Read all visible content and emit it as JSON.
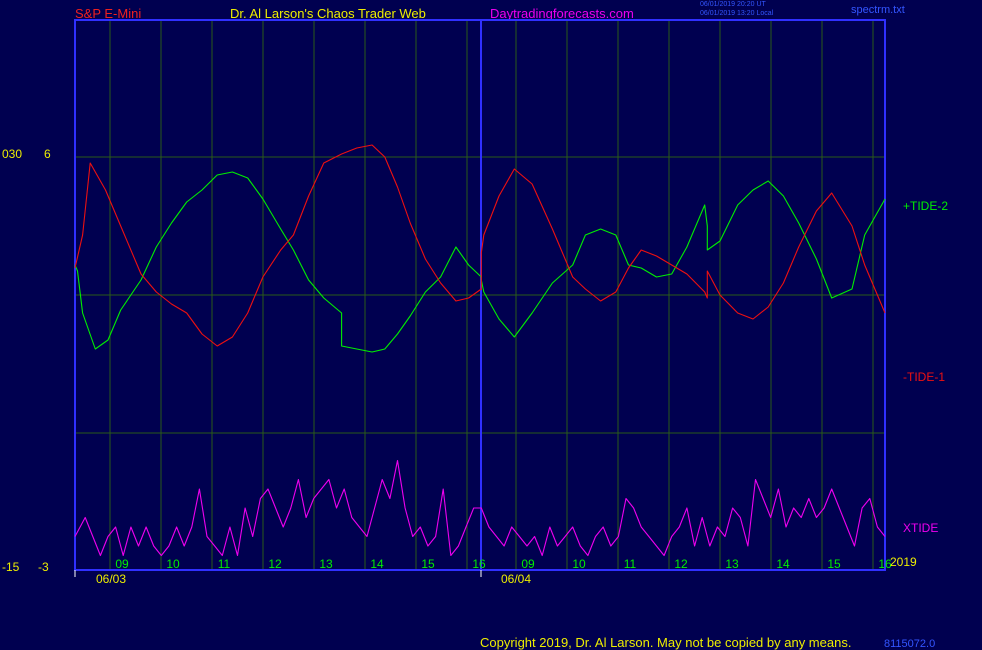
{
  "header": {
    "symbol": "S&P E-Mini",
    "site_title": "Dr. Al Larson's Chaos Trader Web",
    "site_link": "Daytradingforecasts.com",
    "utc_stamp": "06/01/2019 20:20 UT",
    "local_stamp": "06/01/2019 13:20 Local",
    "file_name": "spectrm.txt"
  },
  "footer": {
    "copyright": "Copyright 2019, Dr. Al Larson. May not be copied by any means.",
    "counter": "8115072.0"
  },
  "colors": {
    "background": "#000050",
    "frame": "#3030ff",
    "grid": "#2a5a18",
    "tide2": "#00ee00",
    "tide1": "#ee1010",
    "xtide": "#ee00ee",
    "text_yellow": "#eeee00",
    "text_red": "#ee2020",
    "text_magenta": "#ee00ee",
    "text_blue": "#3355ff"
  },
  "chart_data": {
    "type": "line",
    "title": "",
    "y_axis_labels": [
      {
        "left": "030",
        "right": "6",
        "value": 6
      },
      {
        "left": "-15",
        "right": "-3",
        "value": -3
      }
    ],
    "ylim": [
      -3,
      6
    ],
    "x_tick_labels_day1": [
      "09",
      "10",
      "11",
      "12",
      "13",
      "14",
      "15",
      "16"
    ],
    "x_tick_labels_day2": [
      "09",
      "10",
      "11",
      "12",
      "13",
      "14",
      "15",
      "16"
    ],
    "date_labels": [
      "06/03",
      "06/04"
    ],
    "year_label": "2019",
    "grid": true,
    "series": [
      {
        "name": "+TIDE-2",
        "color": "#00ee00",
        "x": [
          0,
          0.05,
          0.15,
          0.4,
          0.65,
          0.9,
          1.3,
          1.6,
          1.9,
          2.2,
          2.5,
          2.8,
          3.1,
          3.4,
          3.7,
          4.05,
          4.3,
          4.6,
          4.9,
          5.25,
          5.25,
          5.55,
          5.85,
          6.1,
          6.35,
          6.6,
          6.9,
          7.2,
          7.5,
          7.75,
          8.0,
          8.0,
          8.05,
          8.35,
          8.65,
          9.0,
          9.4,
          9.8,
          10.05,
          10.35,
          10.65,
          10.9,
          11.15,
          11.45,
          11.75,
          12.05,
          12.4,
          12.45,
          12.45,
          12.7,
          13.05,
          13.35,
          13.65,
          13.95,
          14.25,
          14.6,
          14.9,
          15.3,
          15.55,
          15.95
        ],
        "y": [
          0.9,
          0.5,
          -0.5,
          -1.3,
          -0.9,
          -0.1,
          0.9,
          2.1,
          3.2,
          4.2,
          3.9,
          3.1,
          2.1,
          1.4,
          2.7,
          3.4,
          2.8,
          2.7,
          2.2,
          1.6,
          -1.2,
          -1.4,
          -1.1,
          -1.2,
          -0.3,
          0.4,
          1.4,
          1.6,
          2.5,
          1.8,
          1.3,
          0.9,
          0.3,
          -1.1,
          -1.6,
          -0.5,
          0.6,
          0.9,
          2.0,
          2.5,
          2.7,
          1.8,
          2.0,
          1.4,
          1.3,
          2.9,
          4.5,
          3.8,
          3.0,
          3.3,
          4.1,
          4.4,
          3.8,
          2.9,
          1.9,
          0.8,
          -0.8,
          0.7,
          3.0,
          4.8
        ],
        "ysrc": [
          1.0,
          0.8,
          -0.6,
          -1.8,
          -1.5,
          -0.5,
          0.5,
          1.6,
          2.4,
          3.1,
          3.5,
          4.0,
          4.1,
          3.9,
          3.2,
          2.2,
          1.5,
          0.5,
          -0.1,
          -0.6,
          -1.7,
          -1.8,
          -1.9,
          -1.8,
          -1.3,
          -0.7,
          0.1,
          0.6,
          1.6,
          1.0,
          0.6,
          0.5,
          0.1,
          -0.8,
          -1.4,
          -0.6,
          0.4,
          1.0,
          2.0,
          2.2,
          2.0,
          1.0,
          0.9,
          0.6,
          0.7,
          1.6,
          3.0,
          2.3,
          1.5,
          1.8,
          3.0,
          3.5,
          3.8,
          3.3,
          2.4,
          1.2,
          -0.1,
          0.2,
          2.0,
          3.2
        ]
      },
      {
        "name": "-TIDE-1",
        "color": "#ee1010",
        "x": [
          0,
          0.15,
          0.3,
          0.6,
          0.9,
          1.3,
          1.6,
          1.9,
          2.2,
          2.5,
          2.8,
          3.1,
          3.4,
          3.7,
          4.05,
          4.3,
          4.6,
          4.9,
          5.25,
          5.25,
          5.55,
          5.85,
          6.1,
          6.35,
          6.6,
          6.9,
          7.2,
          7.5,
          7.75,
          8.0,
          8.0,
          8.05,
          8.35,
          8.65,
          9.0,
          9.4,
          9.8,
          10.05,
          10.35,
          10.65,
          10.9,
          11.15,
          11.45,
          11.75,
          12.05,
          12.4,
          12.45,
          12.45,
          12.7,
          13.05,
          13.35,
          13.65,
          13.95,
          14.25,
          14.6,
          14.9,
          15.3,
          15.55,
          15.95
        ],
        "y": [
          1.1,
          2.5,
          4.6,
          3.9,
          2.9,
          1.8,
          0.7,
          0.2,
          -0.3,
          -1.2,
          -1.5,
          -0.6,
          0.9,
          1.8,
          2.0,
          2.6,
          3.8,
          4.7,
          4.8,
          4.8,
          5.0,
          5.1,
          4.6,
          3.5,
          2.2,
          1.0,
          0.3,
          -0.3,
          -0.2,
          0.2,
          1.5,
          2.0,
          3.3,
          4.2,
          3.6,
          2.0,
          0.6,
          0.1,
          -0.3,
          0.0,
          0.9,
          1.5,
          1.3,
          1.0,
          0.6,
          0.0,
          -0.2,
          0.8,
          -0.2,
          -0.7,
          -0.9,
          -0.6,
          0.1,
          1.4,
          2.7,
          3.4,
          2.3,
          1.1,
          -0.7
        ],
        "ysrc": [
          0.9,
          2.0,
          4.4,
          3.5,
          2.3,
          0.7,
          0.1,
          -0.3,
          -0.6,
          -1.3,
          -1.7,
          -1.4,
          -0.6,
          0.6,
          1.5,
          2.0,
          3.3,
          4.4,
          4.7,
          4.7,
          4.9,
          5.0,
          4.6,
          3.6,
          2.4,
          1.2,
          0.4,
          -0.2,
          -0.1,
          0.2,
          1.4,
          2.0,
          3.3,
          4.2,
          3.7,
          2.2,
          0.6,
          0.2,
          -0.2,
          0.1,
          0.9,
          1.5,
          1.3,
          1.0,
          0.7,
          0.1,
          -0.1,
          0.8,
          0.0,
          -0.6,
          -0.8,
          -0.4,
          0.4,
          1.6,
          2.8,
          3.4,
          2.3,
          1.0,
          -0.6
        ]
      },
      {
        "name": "XTIDE",
        "color": "#ee00ee",
        "x": [
          0,
          0.2,
          0.35,
          0.5,
          0.65,
          0.8,
          0.95,
          1.1,
          1.25,
          1.4,
          1.55,
          1.7,
          1.85,
          2.0,
          2.15,
          2.3,
          2.45,
          2.6,
          2.75,
          2.9,
          3.05,
          3.2,
          3.35,
          3.5,
          3.65,
          3.8,
          3.95,
          4.1,
          4.25,
          4.4,
          4.55,
          4.7,
          4.85,
          5.0,
          5.15,
          5.3,
          5.45,
          5.6,
          5.75,
          5.9,
          6.05,
          6.2,
          6.35,
          6.5,
          6.65,
          6.8,
          6.95,
          7.1,
          7.25,
          7.4,
          7.55,
          7.7,
          7.85,
          8.0,
          8.15,
          8.3,
          8.45,
          8.6,
          8.75,
          8.9,
          9.05,
          9.2,
          9.35,
          9.5,
          9.65,
          9.8,
          9.95,
          10.1,
          10.25,
          10.4,
          10.55,
          10.7,
          10.85,
          11.0,
          11.15,
          11.3,
          11.45,
          11.6,
          11.75,
          11.9,
          12.05,
          12.2,
          12.35,
          12.5,
          12.65,
          12.8,
          12.95,
          13.1,
          13.25,
          13.4,
          13.55,
          13.7,
          13.85,
          14.0,
          14.15,
          14.3,
          14.45,
          14.6,
          14.75,
          14.9,
          15.05,
          15.2,
          15.35,
          15.5,
          15.65,
          15.8,
          15.95
        ],
        "y": [
          -2.7,
          -2.5,
          -2.7,
          -2.9,
          -2.7,
          -2.6,
          -2.9,
          -2.6,
          -2.8,
          -2.6,
          -2.8,
          -2.9,
          -2.8,
          -2.6,
          -2.8,
          -2.6,
          -2.2,
          -2.7,
          -2.8,
          -2.9,
          -2.6,
          -2.9,
          -2.4,
          -2.7,
          -2.3,
          -2.2,
          -2.4,
          -2.6,
          -2.4,
          -2.1,
          -2.5,
          -2.3,
          -2.2,
          -2.1,
          -2.4,
          -2.2,
          -2.5,
          -2.6,
          -2.7,
          -2.4,
          -2.1,
          -2.3,
          -1.9,
          -2.4,
          -2.7,
          -2.6,
          -2.8,
          -2.7,
          -2.2,
          -2.9,
          -2.8,
          -2.6,
          -2.4,
          -2.4,
          -2.6,
          -2.7,
          -2.8,
          -2.6,
          -2.7,
          -2.8,
          -2.7,
          -2.9,
          -2.6,
          -2.8,
          -2.7,
          -2.6,
          -2.8,
          -2.9,
          -2.7,
          -2.6,
          -2.8,
          -2.7,
          -2.3,
          -2.4,
          -2.6,
          -2.7,
          -2.8,
          -2.9,
          -2.7,
          -2.6,
          -2.4,
          -2.8,
          -2.5,
          -2.8,
          -2.6,
          -2.7,
          -2.4,
          -2.5,
          -2.8,
          -2.1,
          -2.3,
          -2.5,
          -2.2,
          -2.6,
          -2.4,
          -2.5,
          -2.3,
          -2.5,
          -2.4,
          -2.2,
          -2.4,
          -2.6,
          -2.8,
          -2.4,
          -2.3,
          -2.6,
          -2.7
        ]
      }
    ],
    "series_labels": [
      {
        "text": "+TIDE-2",
        "series": "+TIDE-2"
      },
      {
        "text": "-TIDE-1",
        "series": "-TIDE-1"
      },
      {
        "text": "XTIDE",
        "series": "XTIDE"
      }
    ]
  }
}
